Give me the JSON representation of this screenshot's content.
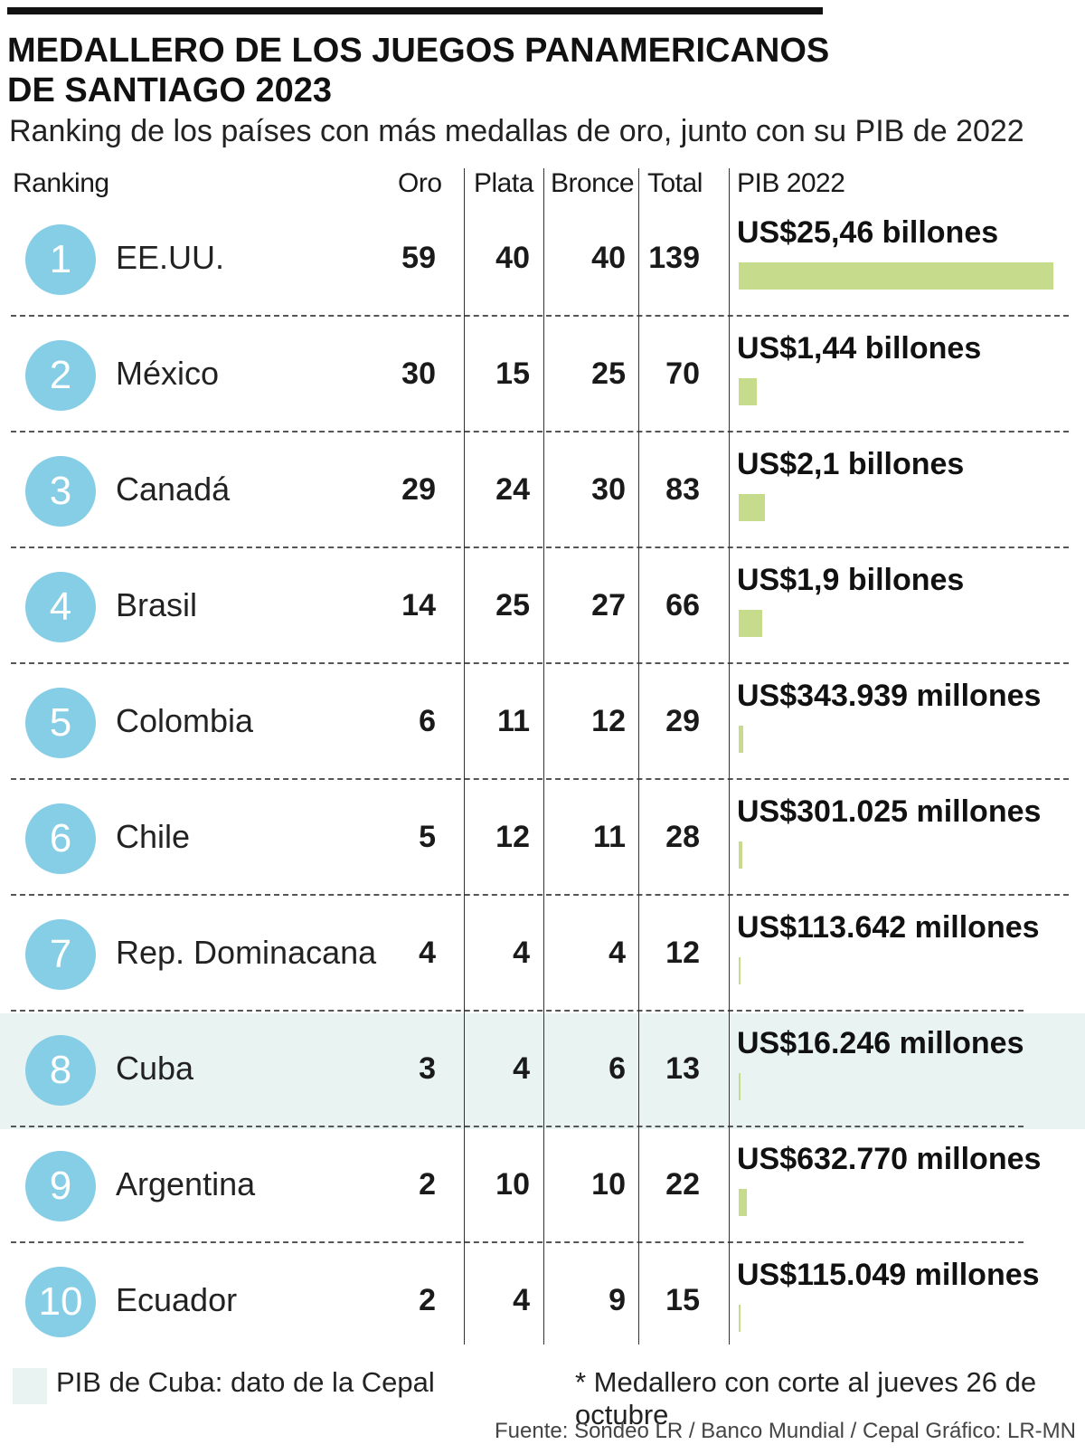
{
  "title": "MEDALLERO DE LOS JUEGOS PANAMERICANOS\nDE SANTIAGO 2023",
  "subtitle": "Ranking de los países con más medallas de oro, junto con su PIB de 2022",
  "headers": {
    "ranking": "Ranking",
    "oro": "Oro",
    "plata": "Plata",
    "bronce": "Bronce",
    "total": "Total",
    "pib": "PIB 2022"
  },
  "colors": {
    "circle": "#86cde6",
    "bar": "#c7db8d",
    "highlight": "#e9f4f2"
  },
  "chart_data": {
    "type": "table",
    "columns": [
      "Ranking",
      "Oro",
      "Plata",
      "Bronce",
      "Total",
      "PIB 2022"
    ],
    "highlight_row": 8,
    "rows": [
      {
        "rank": "1",
        "country": "EE.UU.",
        "oro": 59,
        "plata": 40,
        "bronce": 40,
        "total": 139,
        "pib_label": "US$25,46 billones",
        "pib_value": 25.46
      },
      {
        "rank": "2",
        "country": "México",
        "oro": 30,
        "plata": 15,
        "bronce": 25,
        "total": 70,
        "pib_label": "US$1,44 billones",
        "pib_value": 1.44
      },
      {
        "rank": "3",
        "country": "Canadá",
        "oro": 29,
        "plata": 24,
        "bronce": 30,
        "total": 83,
        "pib_label": "US$2,1 billones",
        "pib_value": 2.1
      },
      {
        "rank": "4",
        "country": "Brasil",
        "oro": 14,
        "plata": 25,
        "bronce": 27,
        "total": 66,
        "pib_label": "US$1,9 billones",
        "pib_value": 1.9
      },
      {
        "rank": "5",
        "country": "Colombia",
        "oro": 6,
        "plata": 11,
        "bronce": 12,
        "total": 29,
        "pib_label": "US$343.939 millones",
        "pib_value": 0.343939
      },
      {
        "rank": "6",
        "country": "Chile",
        "oro": 5,
        "plata": 12,
        "bronce": 11,
        "total": 28,
        "pib_label": "US$301.025 millones",
        "pib_value": 0.301025
      },
      {
        "rank": "7",
        "country": "Rep. Dominacana",
        "oro": 4,
        "plata": 4,
        "bronce": 4,
        "total": 12,
        "pib_label": "US$113.642 millones",
        "pib_value": 0.113642
      },
      {
        "rank": "8",
        "country": "Cuba",
        "oro": 3,
        "plata": 4,
        "bronce": 6,
        "total": 13,
        "pib_label": "US$16.246 millones",
        "pib_value": 0.016246
      },
      {
        "rank": "9",
        "country": "Argentina",
        "oro": 2,
        "plata": 10,
        "bronce": 10,
        "total": 22,
        "pib_label": "US$632.770 millones",
        "pib_value": 0.63277
      },
      {
        "rank": "10",
        "country": "Ecuador",
        "oro": 2,
        "plata": 4,
        "bronce": 9,
        "total": 15,
        "pib_label": "US$115.049 millones",
        "pib_value": 0.115049
      }
    ]
  },
  "legend": "PIB de Cuba: dato de la Cepal",
  "footnote": "* Medallero con corte al jueves 26 de octubre",
  "source": "Fuente: Sondeo LR / Banco Mundial / Cepal   Gráfico: LR-MN"
}
